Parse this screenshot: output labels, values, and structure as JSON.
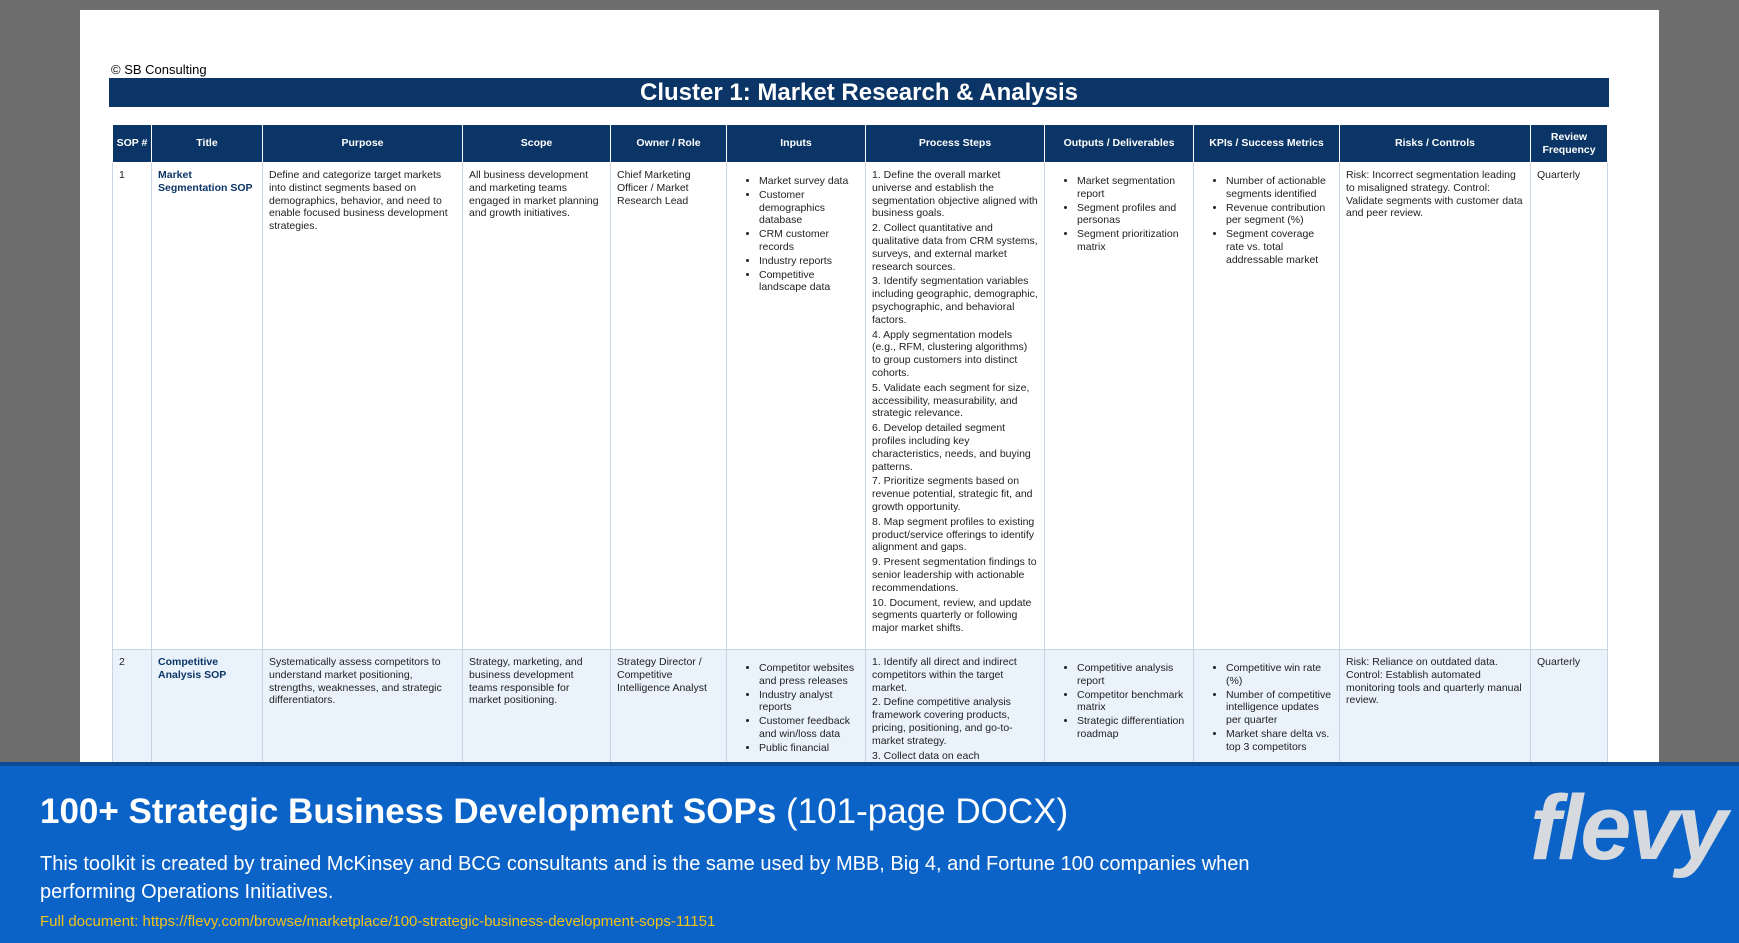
{
  "header": {
    "copyright": "© SB Consulting",
    "title": "Cluster 1: Market Research & Analysis"
  },
  "table": {
    "columns": [
      "SOP #",
      "Title",
      "Purpose",
      "Scope",
      "Owner / Role",
      "Inputs",
      "Process Steps",
      "Outputs / Deliverables",
      "KPIs / Success Metrics",
      "Risks / Controls",
      "Review Frequency"
    ],
    "rows": [
      {
        "sop": "1",
        "title": "Market Segmentation SOP",
        "purpose": "Define and categorize target markets into distinct segments based on demographics, behavior, and need to enable focused business development strategies.",
        "scope": "All business development and marketing teams engaged in market planning and growth initiatives.",
        "owner": "Chief Marketing Officer / Market Research Lead",
        "inputs": [
          "Market survey data",
          "Customer demographics database",
          "CRM customer records",
          "Industry reports",
          "Competitive landscape data"
        ],
        "steps": [
          "1. Define the overall market universe and establish the segmentation objective aligned with business goals.",
          "2. Collect quantitative and qualitative data from CRM systems, surveys, and external market research sources.",
          "3. Identify segmentation variables including geographic, demographic, psychographic, and behavioral factors.",
          "4. Apply segmentation models (e.g., RFM, clustering algorithms) to group customers into distinct cohorts.",
          "5. Validate each segment for size, accessibility, measurability, and strategic relevance.",
          "6. Develop detailed segment profiles including key characteristics, needs, and buying patterns.",
          "7. Prioritize segments based on revenue potential, strategic fit, and growth opportunity.",
          "8. Map segment profiles to existing product/service offerings to identify alignment and gaps.",
          "9. Present segmentation findings to senior leadership with actionable recommendations.",
          "10. Document, review, and update segments quarterly or following major market shifts."
        ],
        "outputs": [
          "Market segmentation report",
          "Segment profiles and personas",
          "Segment prioritization matrix"
        ],
        "kpis": [
          "Number of actionable segments identified",
          "Revenue contribution per segment (%)",
          "Segment coverage rate vs. total addressable market"
        ],
        "risks": "Risk: Incorrect segmentation leading to misaligned strategy. Control: Validate segments with customer data and peer review.",
        "frequency": "Quarterly"
      },
      {
        "sop": "2",
        "title": "Competitive Analysis SOP",
        "purpose": "Systematically assess competitors to understand market positioning, strengths, weaknesses, and strategic differentiators.",
        "scope": "Strategy, marketing, and business development teams responsible for market positioning.",
        "owner": "Strategy Director / Competitive Intelligence Analyst",
        "inputs": [
          "Competitor websites and press releases",
          "Industry analyst reports",
          "Customer feedback and win/loss data",
          "Public financial"
        ],
        "steps": [
          "1. Identify all direct and indirect competitors within the target market.",
          "2. Define competitive analysis framework covering products, pricing, positioning, and go-to-market strategy.",
          "3. Collect data on each"
        ],
        "outputs": [
          "Competitive analysis report",
          "Competitor benchmark matrix",
          "Strategic differentiation roadmap"
        ],
        "kpis": [
          "Competitive win rate (%)",
          "Number of competitive intelligence updates per quarter",
          "Market share delta vs. top 3 competitors"
        ],
        "risks": "Risk: Reliance on outdated data. Control: Establish automated monitoring tools and quarterly manual review.",
        "frequency": "Quarterly"
      }
    ]
  },
  "banner": {
    "title": "100+ Strategic Business Development SOPs",
    "subtitle": "(101-page DOCX)",
    "description": "This toolkit is created by trained McKinsey and BCG consultants and is the same used by MBB, Big 4, and Fortune 100 companies when performing Operations Initiatives.",
    "link": "Full document: https://flevy.com/browse/marketplace/100-strategic-business-development-sops-11151",
    "logo": "flevy"
  }
}
